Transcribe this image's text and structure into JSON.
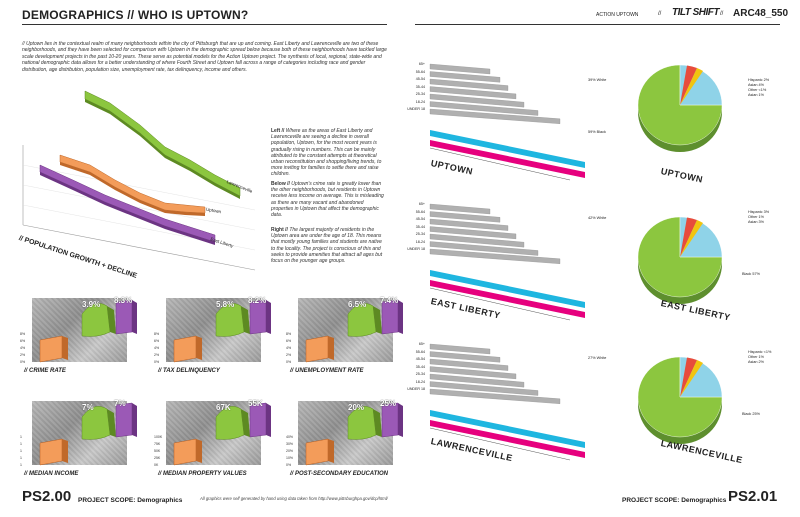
{
  "header": {
    "left_title": "DEMOGRAPHICS // WHO IS UPTOWN?",
    "right_small": "ACTION UPTOWN",
    "right_sep": "//",
    "right_logo": "TILT SHIFT",
    "right_sep2": "//",
    "right_code": "ARC48_550"
  },
  "intro": "// Uptown lies in the contextual realm of many neighborhoods within the city of Pittsburgh that are up and coming. East Liberty and Lawrenceville are two of these neighborhoods, and they have been selected for comparison with Uptown in the demographic spread below because both of these neighborhoods have tackled large scale development projects in the past 10-20 years. These serve as potential models for the Action Uptown project. The synthesis of local, regional, state-wide and national demographic data allows for a better understanding of where Fourth Street and Uptown fall across a range of categories including race and gender distribution, age distribution, population size, unemployment rate, tax delinquency, income and others.",
  "pop_chart": {
    "title": "// POPULATION GROWTH + DECLINE",
    "series_labels": [
      "Lawrenceville",
      "Uptown",
      "East Liberty"
    ],
    "colors": {
      "lawrenceville": "#8cc63f",
      "uptown": "#f39c5a",
      "eastliberty": "#9b59b6"
    }
  },
  "captions": {
    "left_head": "Left //",
    "left_body": "Where as the areas of East Liberty and Lawrenceville are seeing a decline in overall population, Uptown, for the most recent years is gradually rising in numbers. This can be mainly attributed to the constant attempts at theoretical urban reconstitution and shopping/living trends, to more inviting for families to settle there and raise children.",
    "below_head": "Below //",
    "below_body": "Uptown's crime rate is greatly lower than the other neighborhoods, but residents in Uptown receive less income on average. This is misleading as there are many vacant and abandoned properties in Uptown that affect the demographic data.",
    "right_head": "Right //",
    "right_body": "The largest majority of residents in the Uptown area are under the age of 18. This means that mostly young families and students are native to the locality. The project is conscious of this and seeks to provide amenities that attract all ages but focus on the younger age groups."
  },
  "tiles": [
    {
      "label": "// CRIME RATE",
      "a": "3.9%",
      "b": "8.3%",
      "ticks": [
        "8%",
        "6%",
        "4%",
        "2%",
        "0%"
      ]
    },
    {
      "label": "// TAX DELINQUENCY",
      "a": "5.8%",
      "b": "8.2%",
      "ticks": [
        "8%",
        "6%",
        "4%",
        "2%",
        "0%"
      ]
    },
    {
      "label": "// UNEMPLOYMENT RATE",
      "a": "6.5%",
      "b": "7.4%",
      "ticks": [
        "8%",
        "6%",
        "4%",
        "2%",
        "0%"
      ]
    },
    {
      "label": "// MEDIAN INCOME",
      "a": "7%",
      "b": "7%",
      "ticks": [
        "1",
        "1",
        "1",
        "1",
        "1"
      ]
    },
    {
      "label": "// MEDIAN PROPERTY VALUES",
      "a": "67K",
      "b": "55K",
      "ticks": [
        "100K",
        "75K",
        "50K",
        "25K",
        "0K"
      ]
    },
    {
      "label": "// POST-SECONDARY EDUCATION",
      "a": "20%",
      "b": "25%",
      "ticks": [
        "40%",
        "30%",
        "20%",
        "10%",
        "0%"
      ]
    }
  ],
  "neighborhoods": [
    {
      "name": "UPTOWN",
      "pie_labels": [
        "Hispanic 2%",
        "Asian 4%",
        "Other <1%",
        "Asian 1%"
      ],
      "white": "39% White",
      "black": "59% Black"
    },
    {
      "name": "EAST LIBERTY",
      "pie_labels": [
        "Hispanic 3%",
        "Other 1%",
        "Asian 3%"
      ],
      "white": "42% White",
      "black": "Black 57%"
    },
    {
      "name": "LAWRENCEVILLE",
      "pie_labels": [
        "Hispanic <1%",
        "Other 1%",
        "Asian 2%"
      ],
      "white": "27% White",
      "black": "Black 25%"
    }
  ],
  "age_labels": [
    "65+",
    "55-64",
    "45-54",
    "35-44",
    "25-34",
    "18-24",
    "UNDER 18"
  ],
  "footer": {
    "left_code": "PS2.00",
    "left_scope": "PROJECT SCOPE: Demographics",
    "note": "All graphics were self generated by hand using data taken from http://www.pittsburghpa.gov/dcp/html/",
    "right_scope": "PROJECT SCOPE: Demographics",
    "right_code": "PS2.01"
  }
}
